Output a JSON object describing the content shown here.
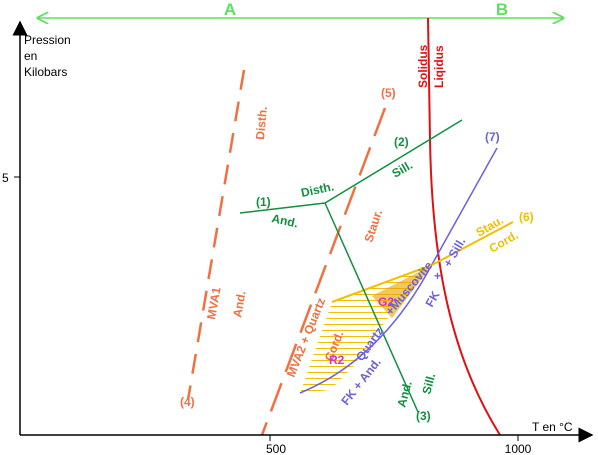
{
  "header": {
    "regions": [
      "A",
      "B"
    ]
  },
  "axes": {
    "y_title": [
      "Pression",
      "en",
      "Kilobars"
    ],
    "y_tick": "5",
    "x_ticks": [
      "500",
      "1000"
    ],
    "x_title": "T en °C"
  },
  "curves": {
    "solidus": "Solidus",
    "liquidus": "Liqidus",
    "c1": "(1)",
    "c2": "(2)",
    "c3": "(3)",
    "c4": "(4)",
    "c5": "(5)",
    "c6": "(6)",
    "c7": "(7)"
  },
  "labels": {
    "disth_4": "Disth.",
    "disth_1": "Disth.",
    "and_1": "And.",
    "sill_2": "Sill.",
    "staur_5": "Staur.",
    "stau_6": "Stau.",
    "cord_6": "Cord.",
    "mva1": "MVA1",
    "and_4": "And.",
    "mva2": "MVA2 + Quartz",
    "cord_5": "Cord.",
    "fk_and": "FK + And.",
    "quartz": "Quartz",
    "g2": "G2",
    "r2": "R2",
    "muscovite": "+Muscovite",
    "fk": "FK",
    "plus": "+",
    "sill_7": "+ Sill.",
    "sill_3": "Sill.",
    "and_3": "And."
  }
}
